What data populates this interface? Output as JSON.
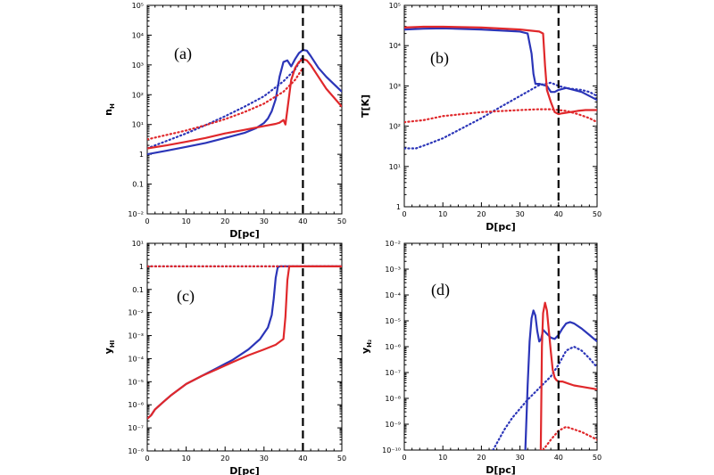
{
  "chart_data": [
    {
      "panel": "(a)",
      "type": "line",
      "xlabel": "D[pc]",
      "ylabel": "n",
      "ylabel_sub": "H",
      "xlim": [
        0,
        50
      ],
      "ylim_log10": [
        -2,
        5
      ],
      "xticks": [
        "0",
        "10",
        "20",
        "30",
        "40",
        "50"
      ],
      "yticks": [
        {
          "v": -2,
          "t": "10⁻²"
        },
        {
          "v": -1,
          "t": "0.1"
        },
        {
          "v": 0,
          "t": "1"
        },
        {
          "v": 1,
          "t": "10¹"
        },
        {
          "v": 2,
          "t": "10²"
        },
        {
          "v": 3,
          "t": "10³"
        },
        {
          "v": 4,
          "t": "10⁴"
        },
        {
          "v": 5,
          "t": "10⁵"
        }
      ],
      "vline": 40,
      "series": [
        {
          "color": "#2b35b8",
          "style": "solid",
          "x": [
            0,
            5,
            10,
            15,
            20,
            25,
            28,
            30,
            31,
            32,
            33,
            34,
            35,
            36,
            37,
            38,
            39,
            40,
            41,
            42,
            44,
            46,
            48,
            50
          ],
          "log10y": [
            0,
            0.12,
            0.25,
            0.38,
            0.55,
            0.72,
            0.88,
            1.05,
            1.2,
            1.45,
            1.85,
            2.6,
            3.1,
            3.15,
            2.95,
            3.2,
            3.4,
            3.5,
            3.48,
            3.3,
            2.9,
            2.6,
            2.35,
            2.1
          ]
        },
        {
          "color": "#2b35b8",
          "style": "dotted",
          "x": [
            0,
            5,
            10,
            15,
            20,
            25,
            30,
            35,
            38,
            40
          ],
          "log10y": [
            0.2,
            0.45,
            0.7,
            0.98,
            1.28,
            1.6,
            1.95,
            2.45,
            2.85,
            3.3
          ]
        },
        {
          "color": "#e0282b",
          "style": "solid",
          "x": [
            0,
            5,
            10,
            15,
            20,
            25,
            30,
            33,
            34,
            35,
            35.5,
            36,
            37,
            38,
            39,
            40,
            41,
            42,
            44,
            46,
            48,
            50
          ],
          "log10y": [
            0.2,
            0.3,
            0.42,
            0.55,
            0.7,
            0.82,
            0.95,
            1.02,
            1.06,
            1.15,
            1.0,
            1.5,
            2.5,
            2.9,
            3.1,
            3.2,
            3.15,
            3.0,
            2.6,
            2.2,
            1.9,
            1.6
          ]
        },
        {
          "color": "#e0282b",
          "style": "dotted",
          "x": [
            0,
            5,
            10,
            15,
            20,
            25,
            30,
            35,
            38,
            40
          ],
          "log10y": [
            0.5,
            0.65,
            0.8,
            0.98,
            1.18,
            1.42,
            1.7,
            2.1,
            2.5,
            2.9
          ]
        }
      ]
    },
    {
      "panel": "(b)",
      "type": "line",
      "xlabel": "D[pc]",
      "ylabel": "T[K]",
      "ylabel_sub": "",
      "xlim": [
        0,
        50
      ],
      "ylim_log10": [
        0,
        5
      ],
      "xticks": [
        "0",
        "10",
        "20",
        "30",
        "40",
        "50"
      ],
      "yticks": [
        {
          "v": 0,
          "t": "1"
        },
        {
          "v": 1,
          "t": "10¹"
        },
        {
          "v": 2,
          "t": "10²"
        },
        {
          "v": 3,
          "t": "10³"
        },
        {
          "v": 4,
          "t": "10⁴"
        },
        {
          "v": 5,
          "t": "10⁵"
        }
      ],
      "vline": 40,
      "series": [
        {
          "color": "#2b35b8",
          "style": "solid",
          "x": [
            0,
            5,
            10,
            20,
            30,
            32,
            33,
            33.5,
            34,
            35,
            37,
            38,
            39,
            40,
            42,
            44,
            46,
            48,
            50
          ],
          "log10y": [
            4.4,
            4.42,
            4.43,
            4.4,
            4.35,
            4.3,
            3.8,
            3.3,
            3.05,
            3.05,
            3.0,
            2.85,
            2.85,
            2.9,
            2.95,
            2.9,
            2.85,
            2.75,
            2.65
          ]
        },
        {
          "color": "#2b35b8",
          "style": "dotted",
          "x": [
            0,
            3,
            6,
            10,
            15,
            20,
            25,
            30,
            35,
            38,
            40,
            42,
            44,
            46,
            48,
            50
          ],
          "log10y": [
            1.45,
            1.45,
            1.55,
            1.7,
            1.95,
            2.2,
            2.48,
            2.75,
            3.02,
            3.08,
            3.0,
            2.95,
            2.92,
            2.9,
            2.85,
            2.75
          ]
        },
        {
          "color": "#e0282b",
          "style": "solid",
          "x": [
            0,
            5,
            10,
            20,
            30,
            35,
            36,
            36.5,
            37,
            38,
            39,
            40,
            41,
            43,
            45,
            47,
            50
          ],
          "log10y": [
            4.45,
            4.47,
            4.47,
            4.45,
            4.4,
            4.35,
            4.3,
            3.5,
            2.9,
            2.6,
            2.35,
            2.3,
            2.32,
            2.35,
            2.38,
            2.4,
            2.4
          ]
        },
        {
          "color": "#e0282b",
          "style": "dotted",
          "x": [
            0,
            5,
            10,
            20,
            30,
            35,
            38,
            40,
            42,
            45,
            48,
            50
          ],
          "log10y": [
            2.1,
            2.15,
            2.25,
            2.35,
            2.4,
            2.42,
            2.42,
            2.4,
            2.38,
            2.3,
            2.2,
            2.1
          ]
        }
      ]
    },
    {
      "panel": "(c)",
      "type": "line",
      "xlabel": "D[pc]",
      "ylabel": "y",
      "ylabel_sub": "HI",
      "xlim": [
        0,
        50
      ],
      "ylim_log10": [
        -8,
        1
      ],
      "xticks": [
        "0",
        "10",
        "20",
        "30",
        "40",
        "50"
      ],
      "yticks": [
        {
          "v": -8,
          "t": "10⁻⁸"
        },
        {
          "v": -7,
          "t": "10⁻⁷"
        },
        {
          "v": -6,
          "t": "10⁻⁶"
        },
        {
          "v": -5,
          "t": "10⁻⁵"
        },
        {
          "v": -4,
          "t": "10⁻⁴"
        },
        {
          "v": -3,
          "t": "10⁻³"
        },
        {
          "v": -2,
          "t": "10⁻²"
        },
        {
          "v": -1,
          "t": "0.1"
        },
        {
          "v": 0,
          "t": "1"
        },
        {
          "v": 1,
          "t": "10¹"
        }
      ],
      "vline": 40,
      "series": [
        {
          "color": "#2b35b8",
          "style": "solid",
          "x": [
            0,
            1,
            2,
            4,
            6,
            8,
            10,
            14,
            18,
            22,
            26,
            29,
            31,
            32,
            32.5,
            33,
            33.5,
            34,
            40,
            50
          ],
          "log10y": [
            -6.6,
            -6.45,
            -6.2,
            -5.9,
            -5.6,
            -5.35,
            -5.1,
            -4.75,
            -4.4,
            -4.05,
            -3.6,
            -3.15,
            -2.65,
            -2.1,
            -1.4,
            -0.5,
            -0.05,
            0,
            0,
            0
          ]
        },
        {
          "color": "#2b35b8",
          "style": "dotted",
          "x": [
            0,
            50
          ],
          "log10y": [
            0,
            0
          ]
        },
        {
          "color": "#e0282b",
          "style": "solid",
          "x": [
            0,
            1,
            2,
            4,
            6,
            8,
            10,
            14,
            18,
            22,
            26,
            30,
            33,
            35,
            35.5,
            36,
            36.5,
            40,
            50
          ],
          "log10y": [
            -6.6,
            -6.45,
            -6.2,
            -5.9,
            -5.6,
            -5.35,
            -5.1,
            -4.75,
            -4.45,
            -4.15,
            -3.85,
            -3.6,
            -3.4,
            -3.15,
            -2.2,
            -0.6,
            0,
            0,
            0
          ]
        },
        {
          "color": "#e0282b",
          "style": "dotted",
          "x": [
            0,
            50
          ],
          "log10y": [
            0,
            0
          ]
        }
      ]
    },
    {
      "panel": "(d)",
      "type": "line",
      "xlabel": "D[pc]",
      "ylabel": "y",
      "ylabel_sub": "H₂",
      "xlim": [
        0,
        50
      ],
      "ylim_log10": [
        -10,
        -2
      ],
      "xticks": [
        "0",
        "10",
        "20",
        "30",
        "40",
        "50"
      ],
      "yticks": [
        {
          "v": -10,
          "t": "10⁻¹⁰"
        },
        {
          "v": -9,
          "t": "10⁻⁹"
        },
        {
          "v": -8,
          "t": "10⁻⁸"
        },
        {
          "v": -7,
          "t": "10⁻⁷"
        },
        {
          "v": -6,
          "t": "10⁻⁶"
        },
        {
          "v": -5,
          "t": "10⁻⁵"
        },
        {
          "v": -4,
          "t": "10⁻⁴"
        },
        {
          "v": -3,
          "t": "10⁻³"
        },
        {
          "v": -2,
          "t": "10⁻²"
        }
      ],
      "vline": 40,
      "series": [
        {
          "color": "#2b35b8",
          "style": "solid",
          "x": [
            31.4,
            32,
            32.5,
            33,
            33.5,
            34,
            34.5,
            35,
            35.5,
            36,
            37,
            38,
            39,
            40,
            41,
            42,
            43,
            44,
            46,
            48,
            50
          ],
          "log10y": [
            -10,
            -7.5,
            -5.8,
            -4.9,
            -4.6,
            -4.8,
            -5.4,
            -5.8,
            -5.7,
            -5.35,
            -5.5,
            -5.65,
            -5.7,
            -5.55,
            -5.3,
            -5.1,
            -5.05,
            -5.1,
            -5.3,
            -5.55,
            -5.8
          ]
        },
        {
          "color": "#2b35b8",
          "style": "dotted",
          "x": [
            23,
            26,
            28,
            30,
            32,
            34,
            36,
            38,
            40,
            42,
            44,
            46,
            48,
            50
          ],
          "log10y": [
            -10,
            -9.2,
            -8.75,
            -8.4,
            -8.05,
            -7.75,
            -7.45,
            -7.15,
            -6.7,
            -6.15,
            -6.0,
            -6.15,
            -6.45,
            -6.8
          ]
        },
        {
          "color": "#e0282b",
          "style": "solid",
          "x": [
            35.4,
            35.7,
            36,
            36.5,
            37,
            37.5,
            38,
            38.5,
            39,
            39.5,
            40,
            41,
            42,
            44,
            46,
            48,
            50
          ],
          "log10y": [
            -10,
            -6.0,
            -4.7,
            -4.3,
            -4.6,
            -5.4,
            -6.2,
            -6.9,
            -7.2,
            -7.3,
            -7.35,
            -7.35,
            -7.4,
            -7.5,
            -7.55,
            -7.6,
            -7.65
          ]
        },
        {
          "color": "#e0282b",
          "style": "dotted",
          "x": [
            36,
            38,
            40,
            42,
            44,
            46,
            48,
            50
          ],
          "log10y": [
            -10,
            -9.6,
            -9.25,
            -9.1,
            -9.2,
            -9.3,
            -9.45,
            -9.6
          ]
        }
      ]
    }
  ]
}
